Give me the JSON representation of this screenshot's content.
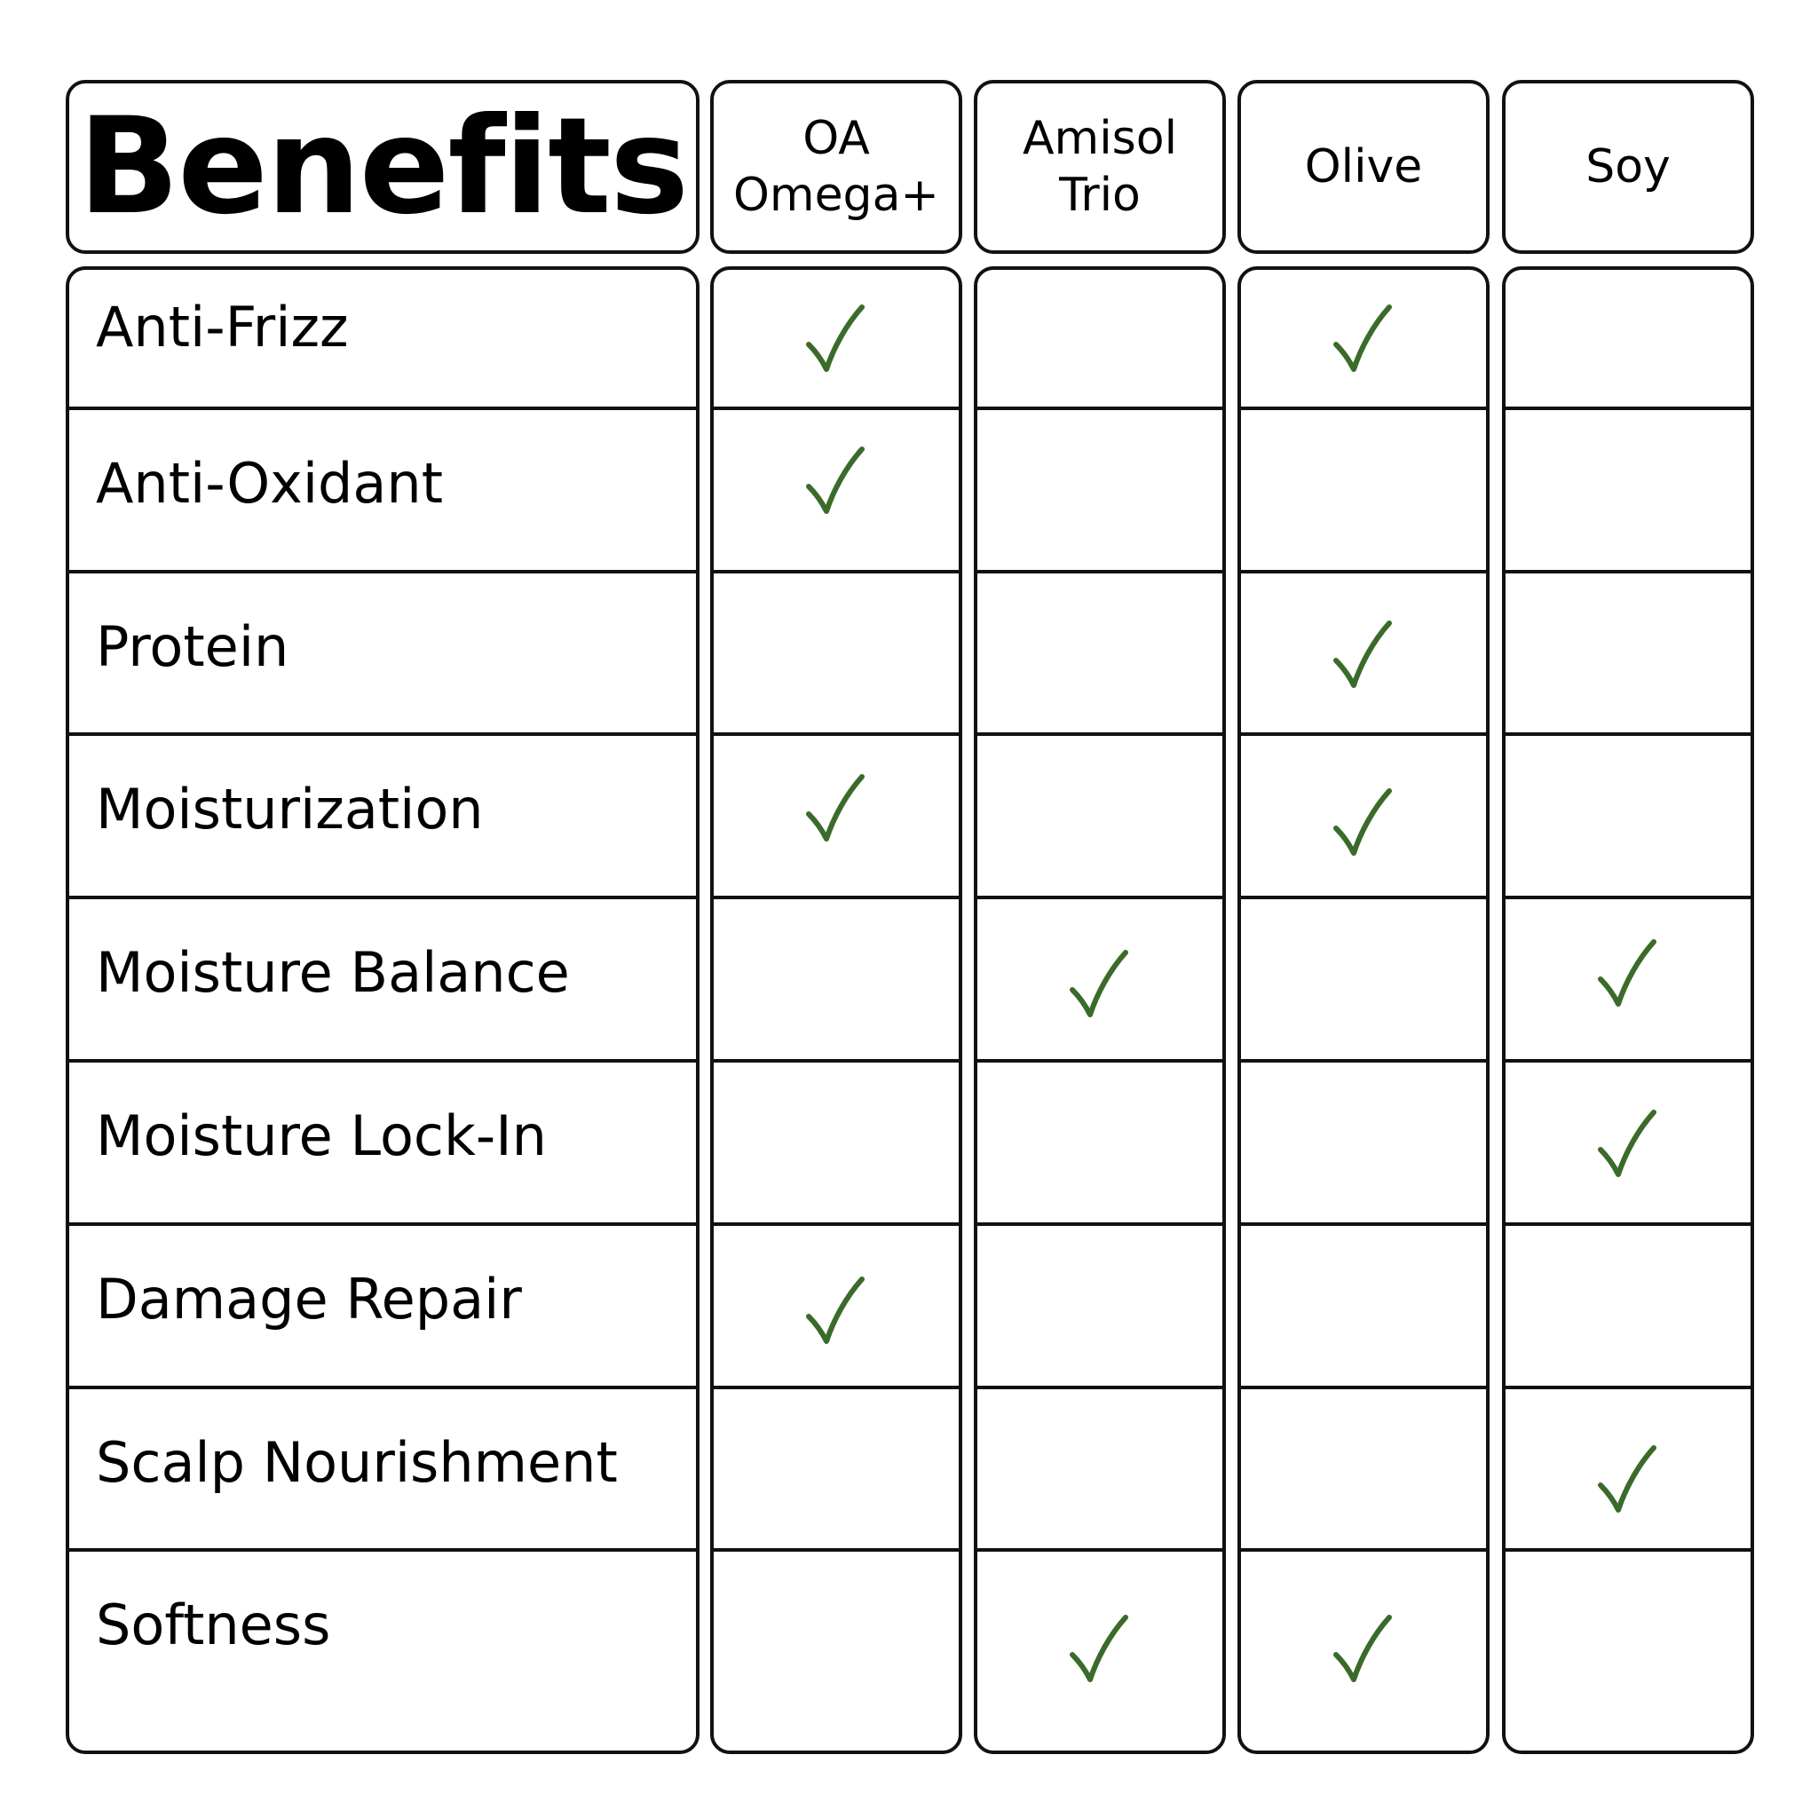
{
  "header": {
    "title": "Benefits",
    "columns": [
      "OA\nOmega+",
      "Amisol\nTrio",
      "Olive",
      "Soy"
    ]
  },
  "benefits": [
    {
      "label": "Anti-Frizz",
      "checks": [
        true,
        false,
        true,
        false
      ]
    },
    {
      "label": "Anti-Oxidant",
      "checks": [
        true,
        false,
        false,
        false
      ]
    },
    {
      "label": "Protein",
      "checks": [
        false,
        false,
        true,
        false
      ]
    },
    {
      "label": "Moisturization",
      "checks": [
        true,
        false,
        true,
        false
      ]
    },
    {
      "label": "Moisture Balance",
      "checks": [
        false,
        true,
        false,
        true
      ]
    },
    {
      "label": "Moisture Lock-In",
      "checks": [
        false,
        false,
        false,
        true
      ]
    },
    {
      "label": "Damage Repair",
      "checks": [
        true,
        false,
        false,
        false
      ]
    },
    {
      "label": "Scalp Nourishment",
      "checks": [
        false,
        false,
        false,
        true
      ]
    },
    {
      "label": "Softness",
      "checks": [
        false,
        true,
        true,
        false
      ]
    }
  ],
  "colors": {
    "check": "#3a6b2a",
    "border": "#111111"
  },
  "icons": {
    "check": "checkmark-icon"
  }
}
